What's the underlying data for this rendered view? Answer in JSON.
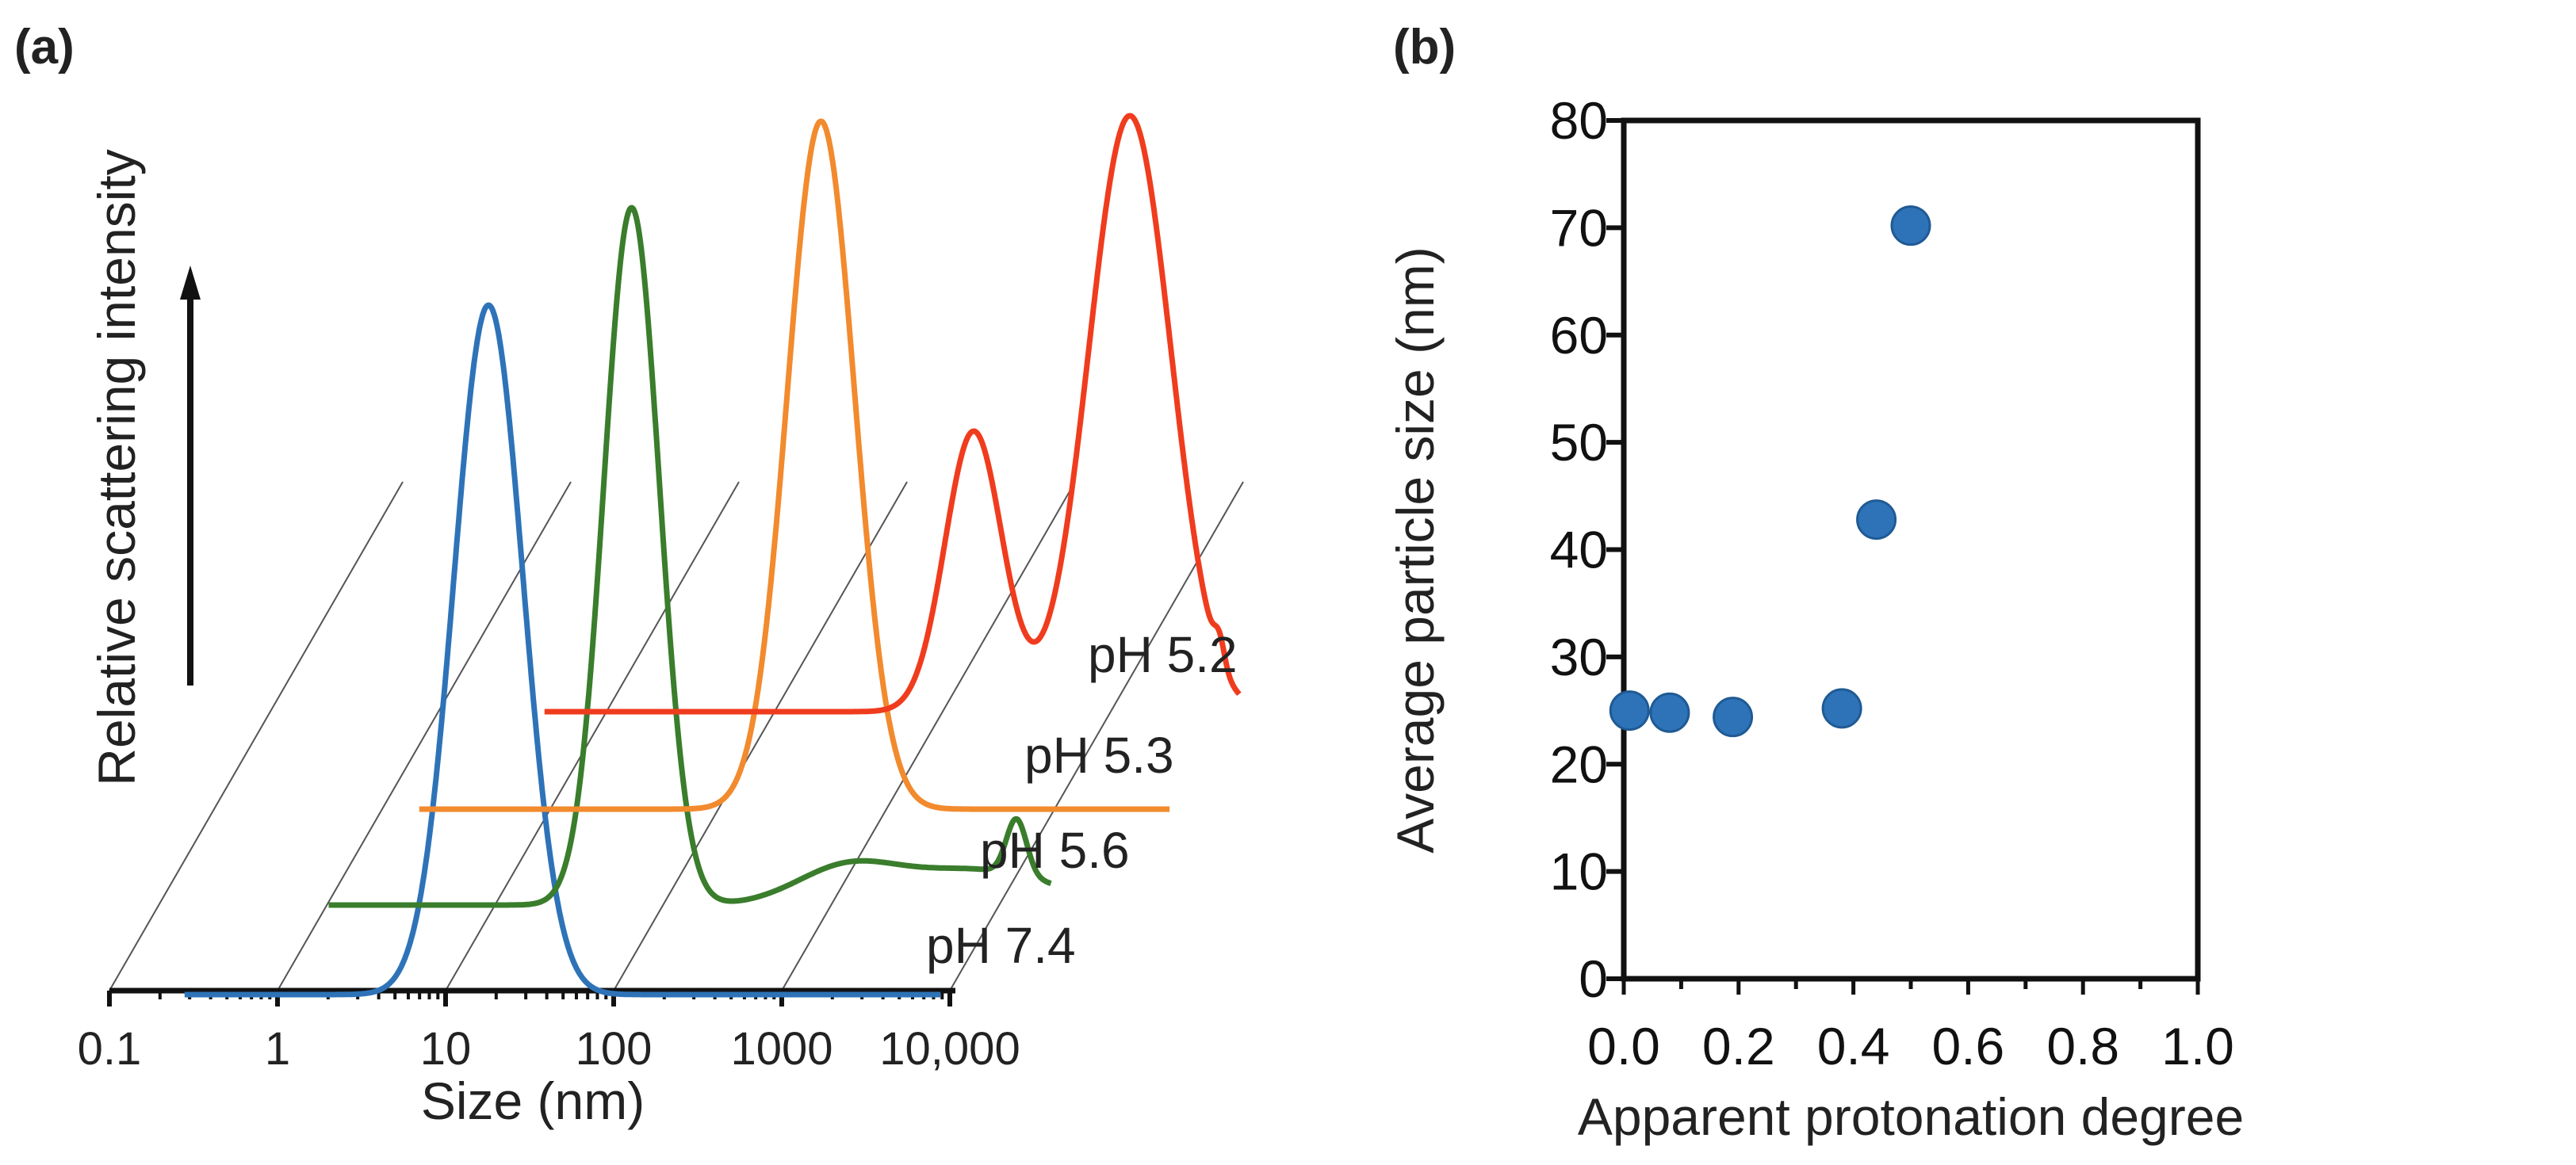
{
  "chart_data": [
    {
      "panel": "(a)",
      "type": "line",
      "xlabel": "Size (nm)",
      "ylabel": "Relative scattering intensity",
      "x_scale": "log",
      "x_ticks": [
        "0.1",
        "1",
        "10",
        "100",
        "1000",
        "10,000"
      ],
      "series": [
        {
          "name": "pH 7.4",
          "color": "#2e73b8",
          "peaks_nm": [
            18
          ]
        },
        {
          "name": "pH 5.6",
          "color": "#3a7d2c",
          "peaks_nm": [
            40
          ]
        },
        {
          "name": "pH 5.3",
          "color": "#f28a2e",
          "peaks_nm": [
            270
          ]
        },
        {
          "name": "pH 5.2",
          "color": "#f03c1e",
          "peaks_nm": [
            1000,
            8500
          ]
        }
      ]
    },
    {
      "panel": "(b)",
      "type": "scatter",
      "xlabel": "Apparent protonation degree",
      "ylabel": "Average particle size (nm)",
      "xlim": [
        0,
        1
      ],
      "ylim": [
        0,
        80
      ],
      "x_ticks": [
        "0.0",
        "0.2",
        "0.4",
        "0.6",
        "0.8",
        "1.0"
      ],
      "y_ticks": [
        "0",
        "10",
        "20",
        "30",
        "40",
        "50",
        "60",
        "70",
        "80"
      ],
      "marker_color": "#2e73b8",
      "points": [
        {
          "x": 0.01,
          "y": 25
        },
        {
          "x": 0.08,
          "y": 24.8
        },
        {
          "x": 0.19,
          "y": 24.4
        },
        {
          "x": 0.38,
          "y": 25.2
        },
        {
          "x": 0.44,
          "y": 42.8
        },
        {
          "x": 0.5,
          "y": 70.2
        }
      ]
    }
  ]
}
